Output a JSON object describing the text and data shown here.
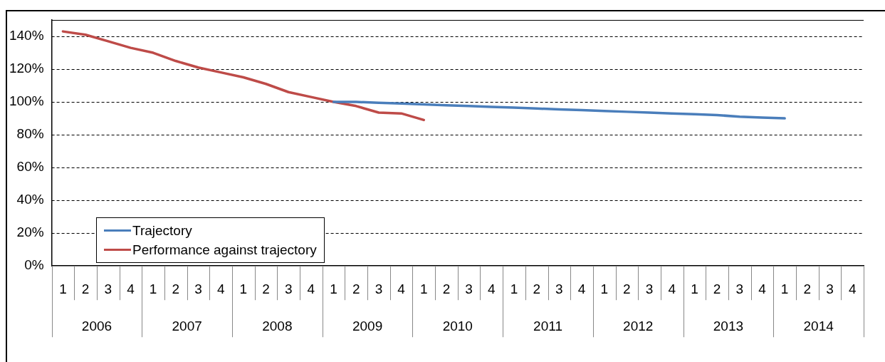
{
  "chart_data": {
    "type": "line",
    "categories": [
      "1",
      "2",
      "3",
      "4",
      "1",
      "2",
      "3",
      "4",
      "1",
      "2",
      "3",
      "4",
      "1",
      "2",
      "3",
      "4",
      "1",
      "2",
      "3",
      "4",
      "1",
      "2",
      "3",
      "4",
      "1",
      "2",
      "3",
      "4",
      "1",
      "2",
      "3",
      "4",
      "1",
      "2",
      "3",
      "4"
    ],
    "annotations": [
      "2006",
      "2007",
      "2008",
      "2009",
      "2010",
      "2011",
      "2012",
      "2013",
      "2014"
    ],
    "series": [
      {
        "name": "Trajectory",
        "color": "#4a7ebb",
        "values": [
          null,
          null,
          null,
          null,
          null,
          null,
          null,
          null,
          null,
          null,
          null,
          null,
          100,
          100,
          99.5,
          99,
          98.5,
          98,
          97.5,
          97,
          96.5,
          96,
          95.5,
          95,
          94.5,
          94,
          93.5,
          93,
          92.5,
          92,
          91,
          90.5,
          90,
          null,
          null,
          null
        ]
      },
      {
        "name": "Performance against trajectory",
        "color": "#be4b48",
        "values": [
          143,
          141,
          137,
          133,
          130,
          125,
          121,
          118,
          115,
          111,
          106,
          103,
          100,
          97.5,
          93.5,
          93,
          89,
          null,
          null,
          null,
          null,
          null,
          null,
          null,
          null,
          null,
          null,
          null,
          null,
          null,
          null,
          null,
          null,
          null,
          null,
          null
        ]
      }
    ],
    "ylim": [
      0,
      150
    ],
    "yticks": [
      {
        "value": 0,
        "label": "0%"
      },
      {
        "value": 20,
        "label": "20%"
      },
      {
        "value": 40,
        "label": "40%"
      },
      {
        "value": 60,
        "label": "60%"
      },
      {
        "value": 80,
        "label": "80%"
      },
      {
        "value": 100,
        "label": "100%"
      },
      {
        "value": 120,
        "label": "120%"
      },
      {
        "value": 140,
        "label": "140%"
      }
    ],
    "grid": "y",
    "legend": "bottom left",
    "marker": "none",
    "line_style": "solid"
  }
}
